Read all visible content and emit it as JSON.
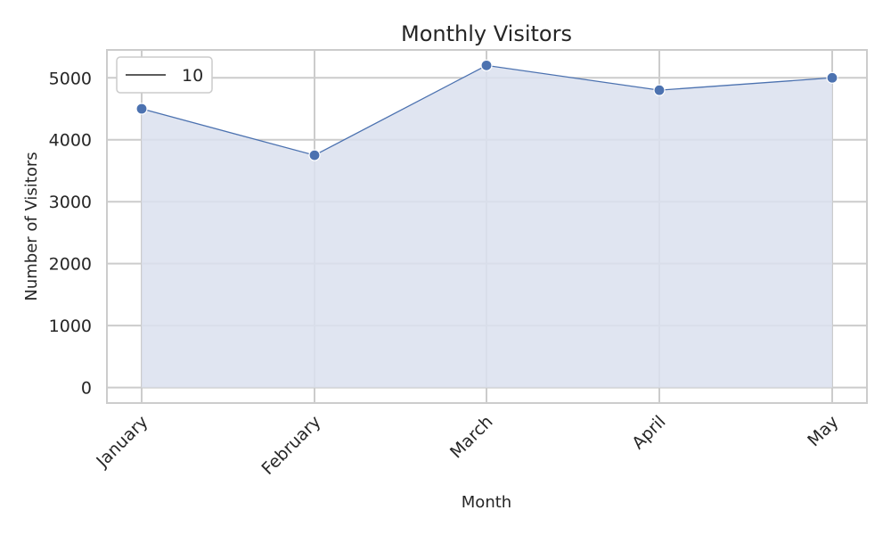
{
  "chart_data": {
    "type": "area",
    "title": "Monthly Visitors",
    "xlabel": "Month",
    "ylabel": "Number of Visitors",
    "categories": [
      "January",
      "February",
      "March",
      "April",
      "May"
    ],
    "series": [
      {
        "name": "10",
        "values": [
          4500,
          3750,
          5200,
          4800,
          5000
        ]
      }
    ],
    "ylim": [
      -250,
      5450
    ],
    "yticks": [
      0,
      1000,
      2000,
      3000,
      4000,
      5000
    ],
    "grid": true,
    "legend_position": "top-left",
    "colors": {
      "line": "#4c72b0",
      "fill": "#dae1ef",
      "grid": "#cccccc",
      "text": "#262626"
    }
  }
}
